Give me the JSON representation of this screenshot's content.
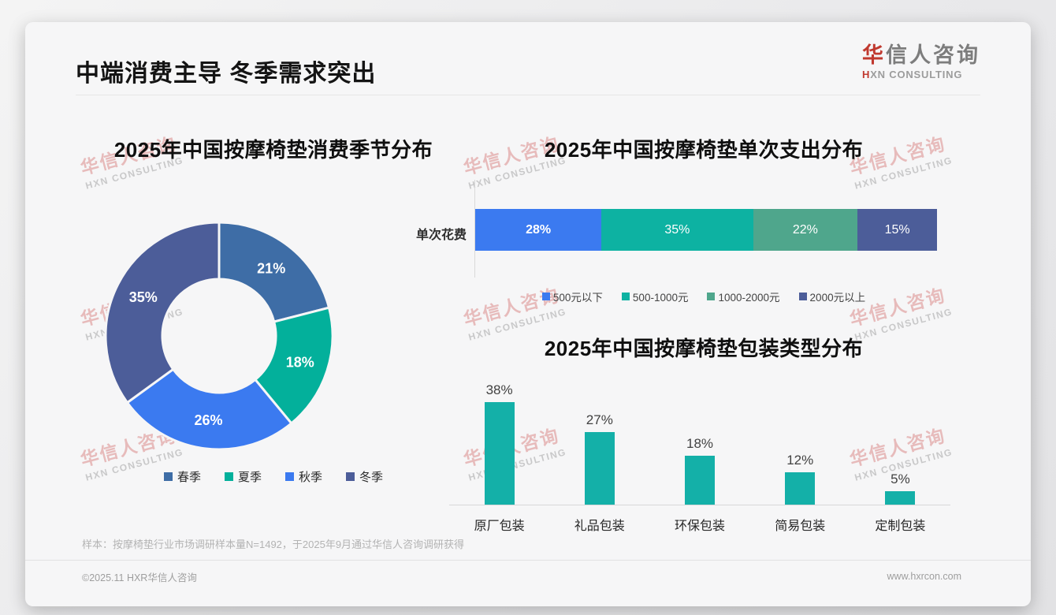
{
  "page": {
    "title": "中端消费主导 冬季需求突出",
    "logo": {
      "cn_red": "华",
      "cn_gray": "信人咨询",
      "en_red": "H",
      "en_gray": "XN CONSULTING"
    },
    "watermark": {
      "line1": "华信人咨询",
      "line2": "HXN CONSULTING"
    },
    "footnote": "样本：按摩椅垫行业市场调研样本量N=1492，于2025年9月通过华信人咨询调研获得",
    "footer_left": "©2025.11 HXR华信人咨询",
    "footer_right": "www.hxrcon.com"
  },
  "chart_data": [
    {
      "type": "pie",
      "subtype": "donut",
      "title": "2025年中国按摩椅垫消费季节分布",
      "categories": [
        "春季",
        "夏季",
        "秋季",
        "冬季"
      ],
      "values": [
        21,
        18,
        26,
        35
      ],
      "labels": [
        "21%",
        "18%",
        "26%",
        "35%"
      ],
      "colors": [
        "#3E6DA6",
        "#03B09B",
        "#3B7AF0",
        "#4C5D99"
      ],
      "start_angle_deg": 0,
      "direction": "clockwise",
      "legend_position": "bottom"
    },
    {
      "type": "bar",
      "subtype": "horizontal-stacked",
      "title": "2025年中国按摩椅垫单次支出分布",
      "category_label": "单次花费",
      "series": [
        {
          "name": "500元以下",
          "value": 28,
          "label": "28%",
          "color": "#3B7AF0"
        },
        {
          "name": "500-1000元",
          "value": 35,
          "label": "35%",
          "color": "#0DB2A2"
        },
        {
          "name": "1000-2000元",
          "value": 22,
          "label": "22%",
          "color": "#4FA68C"
        },
        {
          "name": "2000元以上",
          "value": 15,
          "label": "15%",
          "color": "#4C5D99"
        }
      ],
      "xlim": [
        0,
        100
      ],
      "legend_position": "bottom"
    },
    {
      "type": "bar",
      "subtype": "vertical",
      "title": "2025年中国按摩椅垫包装类型分布",
      "categories": [
        "原厂包装",
        "礼品包装",
        "环保包装",
        "简易包装",
        "定制包装"
      ],
      "values": [
        38,
        27,
        18,
        12,
        5
      ],
      "labels": [
        "38%",
        "27%",
        "18%",
        "12%",
        "5%"
      ],
      "bar_color": "#14B0A8",
      "ylim": [
        0,
        40
      ],
      "grid": false
    }
  ]
}
